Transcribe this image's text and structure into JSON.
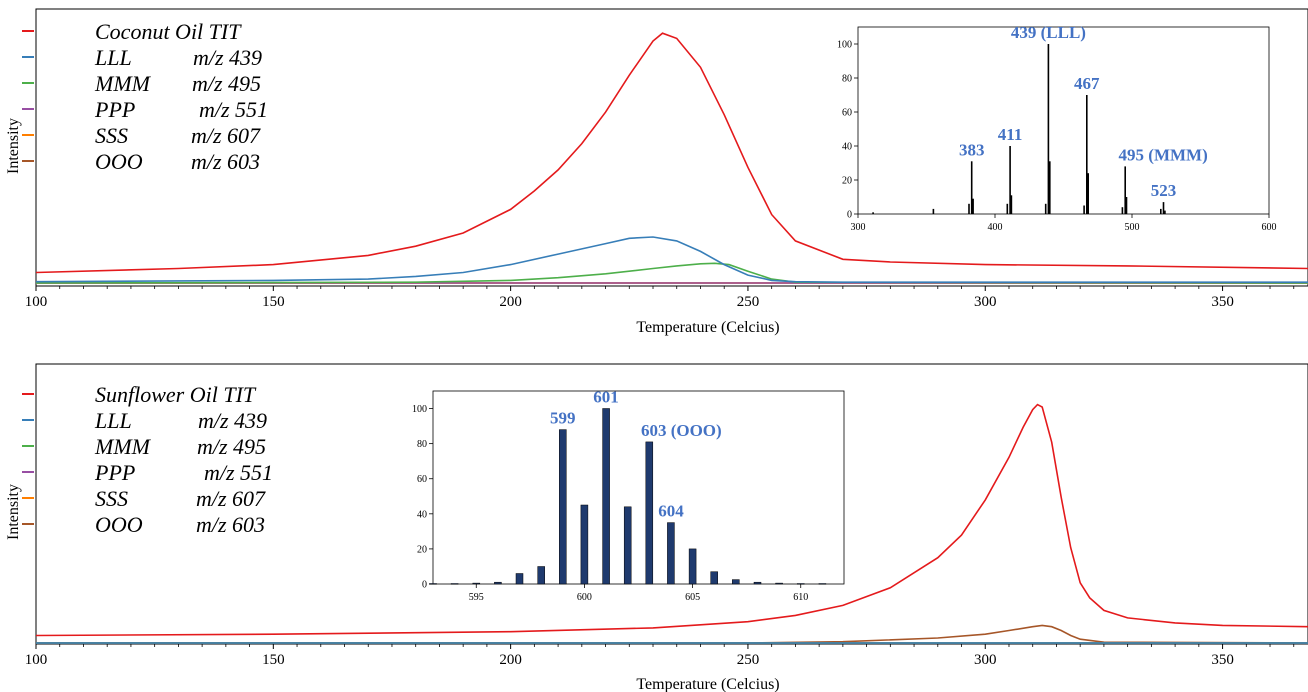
{
  "colors": {
    "TIT": "#e41a1c",
    "LLL": "#377eb8",
    "MMM": "#4daf4a",
    "PPP": "#984ea3",
    "SSS": "#ff7f00",
    "OOO": "#a65628",
    "peak_label": "#4472c4",
    "bar_fill": "#1f3a6e"
  },
  "chart_data": [
    {
      "type": "line",
      "xlabel": "Temperature (Celcius)",
      "ylabel": "Intensity",
      "xlim": [
        100,
        368
      ],
      "ylim": [
        0,
        100
      ],
      "xticks": [
        100,
        150,
        200,
        250,
        300,
        350
      ],
      "legend_position": "top-left",
      "series": [
        {
          "name": "Coconut Oil TIT",
          "mz": "",
          "color_key": "TIT",
          "x": [
            100,
            130,
            150,
            170,
            180,
            190,
            200,
            205,
            210,
            215,
            220,
            225,
            230,
            232,
            235,
            240,
            245,
            250,
            255,
            260,
            270,
            280,
            300,
            330,
            368
          ],
          "y": [
            4,
            5.5,
            7,
            10.5,
            14,
            19,
            28,
            35,
            43,
            53,
            65,
            79,
            92,
            95,
            93,
            82,
            64,
            44,
            26,
            16,
            9,
            8,
            7,
            6.5,
            5.5
          ]
        },
        {
          "name": "LLL",
          "mz": "m/z 439",
          "color_key": "LLL",
          "x": [
            100,
            150,
            170,
            180,
            190,
            200,
            210,
            220,
            225,
            230,
            235,
            240,
            245,
            250,
            255,
            260,
            270,
            368
          ],
          "y": [
            0.5,
            1,
            1.5,
            2.5,
            4,
            7,
            11,
            15,
            17,
            17.5,
            16,
            12,
            7,
            3,
            1,
            0.5,
            0.3,
            0.3
          ]
        },
        {
          "name": "MMM",
          "mz": "m/z 495",
          "color_key": "MMM",
          "x": [
            100,
            180,
            200,
            210,
            220,
            230,
            235,
            240,
            243,
            246,
            250,
            255,
            260,
            368
          ],
          "y": [
            0,
            0.3,
            1,
            2,
            3.5,
            5.5,
            6.5,
            7.3,
            7.5,
            7,
            4.5,
            1.5,
            0.3,
            0
          ]
        },
        {
          "name": "PPP",
          "mz": "m/z 551",
          "color_key": "PPP",
          "x": [
            100,
            368
          ],
          "y": [
            0,
            0
          ]
        },
        {
          "name": "SSS",
          "mz": "m/z 607",
          "color_key": "SSS",
          "x": [
            100,
            368
          ],
          "y": [
            0,
            0
          ]
        },
        {
          "name": "OOO",
          "mz": "m/z 603",
          "color_key": "OOO",
          "x": [
            100,
            368
          ],
          "y": [
            0,
            0
          ]
        }
      ],
      "inset": {
        "type": "bar",
        "xlim": [
          300,
          600
        ],
        "ylim": [
          0,
          110
        ],
        "xticks": [
          300,
          400,
          500,
          600
        ],
        "yticks": [
          0,
          20,
          40,
          60,
          80,
          100
        ],
        "x": [
          311,
          355,
          381,
          383,
          384,
          409,
          411,
          412,
          437,
          439,
          440,
          465,
          467,
          468,
          493,
          495,
          496,
          521,
          523,
          524
        ],
        "y": [
          1,
          3,
          6,
          31,
          9,
          6,
          40,
          11,
          6,
          100,
          31,
          5,
          70,
          24,
          4,
          28,
          10,
          3,
          7,
          2
        ],
        "peak_labels": [
          {
            "x": 383,
            "y": 31,
            "text": "383"
          },
          {
            "x": 411,
            "y": 40,
            "text": "411"
          },
          {
            "x": 439,
            "y": 100,
            "text": "439 (LLL)"
          },
          {
            "x": 467,
            "y": 70,
            "text": "467"
          },
          {
            "x": 495,
            "y": 28,
            "text": "495 (MMM)"
          },
          {
            "x": 523,
            "y": 7,
            "text": "523"
          }
        ]
      }
    },
    {
      "type": "line",
      "xlabel": "Temperature (Celcius)",
      "ylabel": "Intensity",
      "xlim": [
        100,
        368
      ],
      "ylim": [
        0,
        100
      ],
      "xticks": [
        100,
        150,
        200,
        250,
        300,
        350
      ],
      "legend_position": "top-left",
      "series": [
        {
          "name": "Sunflower Oil TIT",
          "mz": "",
          "color_key": "TIT",
          "x": [
            100,
            150,
            200,
            230,
            250,
            260,
            270,
            280,
            290,
            295,
            300,
            305,
            308,
            310,
            311,
            312,
            314,
            316,
            318,
            320,
            322,
            325,
            330,
            340,
            350,
            368
          ],
          "y": [
            3,
            3.5,
            4.5,
            6,
            8.5,
            11,
            15,
            22,
            34,
            43,
            57,
            74,
            86,
            93,
            95,
            94,
            80,
            58,
            38,
            24,
            18,
            13,
            10,
            8,
            7,
            6.5
          ]
        },
        {
          "name": "LLL",
          "mz": "m/z 439",
          "color_key": "LLL",
          "x": [
            100,
            368
          ],
          "y": [
            0,
            0
          ]
        },
        {
          "name": "MMM",
          "mz": "m/z 495",
          "color_key": "MMM",
          "x": [
            100,
            368
          ],
          "y": [
            0,
            0
          ]
        },
        {
          "name": "PPP",
          "mz": "m/z 551",
          "color_key": "PPP",
          "x": [
            100,
            368
          ],
          "y": [
            0,
            0
          ]
        },
        {
          "name": "SSS",
          "mz": "m/z 607",
          "color_key": "SSS",
          "x": [
            100,
            368
          ],
          "y": [
            0,
            0
          ]
        },
        {
          "name": "OOO",
          "mz": "m/z 603",
          "color_key": "OOO",
          "x": [
            100,
            250,
            270,
            290,
            300,
            305,
            310,
            312,
            314,
            316,
            318,
            320,
            325,
            368
          ],
          "y": [
            0,
            0,
            0.5,
            2,
            3.5,
            5,
            6.5,
            7,
            6.5,
            5,
            3,
            1.5,
            0.3,
            0
          ]
        }
      ],
      "inset": {
        "type": "bar",
        "xlim": [
          593,
          612
        ],
        "ylim": [
          0,
          110
        ],
        "xticks": [
          595,
          600,
          605,
          610
        ],
        "yticks": [
          0,
          20,
          40,
          60,
          80,
          100
        ],
        "x": [
          593,
          594,
          595,
          596,
          597,
          598,
          599,
          600,
          601,
          602,
          603,
          604,
          605,
          606,
          607,
          608,
          609,
          610,
          611
        ],
        "y": [
          0.3,
          0.3,
          0.5,
          1,
          6,
          10,
          88,
          45,
          100,
          44,
          81,
          35,
          20,
          7,
          2.5,
          1,
          0.5,
          0.3,
          0.3
        ],
        "peak_labels": [
          {
            "x": 599,
            "y": 88,
            "text": "599"
          },
          {
            "x": 601,
            "y": 100,
            "text": "601"
          },
          {
            "x": 603,
            "y": 81,
            "text": "603 (OOO)"
          },
          {
            "x": 604,
            "y": 35,
            "text": "604"
          }
        ]
      }
    }
  ]
}
